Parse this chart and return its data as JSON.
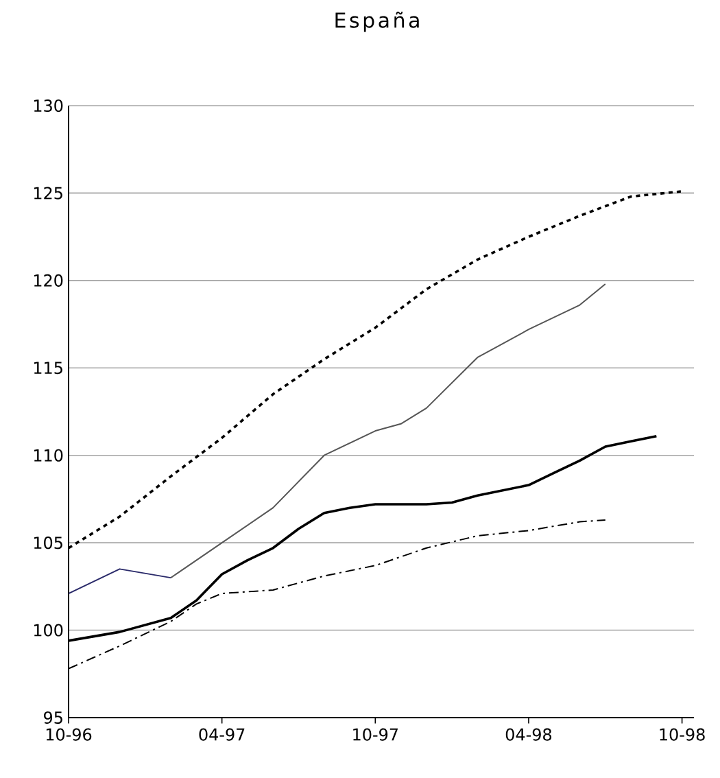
{
  "chart_data": {
    "type": "line",
    "title": "España",
    "xlim": [
      "1996-10",
      "1998-10-15"
    ],
    "xticks": [
      {
        "value": "1996-10",
        "label": "10-96"
      },
      {
        "value": "1997-04",
        "label": "04-97"
      },
      {
        "value": "1997-10",
        "label": "10-97"
      },
      {
        "value": "1998-04",
        "label": "04-98"
      },
      {
        "value": "1998-10",
        "label": "10-98"
      }
    ],
    "ylim": [
      95,
      130
    ],
    "yticks": [
      95,
      100,
      105,
      110,
      115,
      120,
      125,
      130
    ],
    "grid": "y",
    "marker": "none",
    "series": [
      {
        "color": "#000000",
        "line_style": "dotted",
        "x": [
          "1996-10",
          "1996-12",
          "1997-02",
          "1997-04",
          "1997-06",
          "1997-08",
          "1997-10",
          "1997-12",
          "1998-02",
          "1998-04",
          "1998-06",
          "1998-08",
          "1998-10"
        ],
        "values": [
          104.7,
          106.5,
          108.8,
          111,
          113.5,
          115.5,
          117.3,
          119.5,
          121.2,
          122.5,
          123.7,
          124.8,
          125.1
        ]
      },
      {
        "color": "#2a2a6a",
        "line_style": "solid",
        "x": [
          "1996-10",
          "1996-12",
          "1997-02"
        ],
        "values": [
          102.1,
          103.5,
          103.0
        ]
      },
      {
        "color": "#555555",
        "line_style": "solid",
        "x": [
          "1997-02",
          "1997-03",
          "1997-04",
          "1997-06",
          "1997-08",
          "1997-10",
          "1997-11",
          "1997-12",
          "1998-02",
          "1998-04",
          "1998-06",
          "1998-07"
        ],
        "values": [
          103.0,
          104,
          105,
          107,
          110,
          111.4,
          111.8,
          112.7,
          115.6,
          117.2,
          118.6,
          119.8
        ]
      },
      {
        "color": "#000000",
        "line_style": "solid",
        "x": [
          "1996-10",
          "1996-12",
          "1997-02",
          "1997-03",
          "1997-04",
          "1997-05",
          "1997-06",
          "1997-07",
          "1997-08",
          "1997-09",
          "1997-10",
          "1997-12",
          "1998-01",
          "1998-02",
          "1998-04",
          "1998-05",
          "1998-06",
          "1998-07",
          "1998-08",
          "1998-09"
        ],
        "values": [
          99.4,
          99.9,
          100.7,
          101.7,
          103.2,
          104.0,
          104.7,
          105.8,
          106.7,
          107.0,
          107.2,
          107.2,
          107.3,
          107.7,
          108.3,
          109.0,
          109.7,
          110.5,
          110.8,
          111.1
        ]
      },
      {
        "color": "#000000",
        "line_style": "dashed",
        "x": [
          "1996-10",
          "1996-12",
          "1997-02",
          "1997-03",
          "1997-04",
          "1997-06",
          "1997-08",
          "1997-10",
          "1997-12",
          "1998-02",
          "1998-04",
          "1998-06",
          "1998-07"
        ],
        "values": [
          97.8,
          99.1,
          100.5,
          101.5,
          102.1,
          102.3,
          103.1,
          103.7,
          104.7,
          105.4,
          105.7,
          106.2,
          106.3
        ]
      }
    ]
  }
}
